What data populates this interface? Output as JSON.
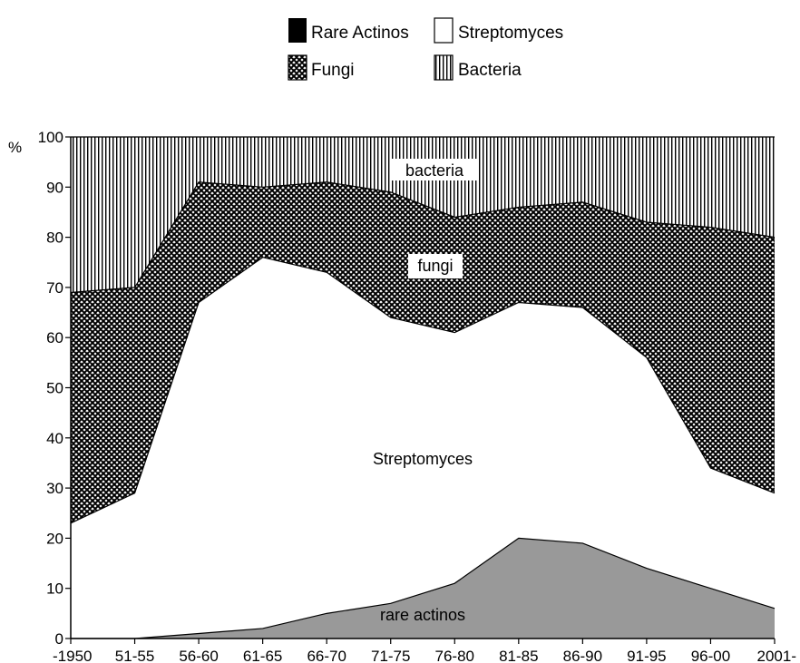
{
  "chart_data": {
    "type": "area",
    "stacked": true,
    "y_unit_label": "%",
    "categories": [
      "-1950",
      "51-55",
      "56-60",
      "61-65",
      "66-70",
      "71-75",
      "76-80",
      "81-85",
      "86-90",
      "91-95",
      "96-00",
      "2001-"
    ],
    "ylim": [
      0,
      100
    ],
    "yticks": [
      0,
      10,
      20,
      30,
      40,
      50,
      60,
      70,
      80,
      90,
      100
    ],
    "grid": false,
    "legend_position": "top-center",
    "series": [
      {
        "name": "Rare Actinos",
        "label": "rare actinos",
        "fill": "gray",
        "values": [
          0,
          0,
          1,
          2,
          5,
          7,
          11,
          20,
          19,
          14,
          10,
          6
        ]
      },
      {
        "name": "Streptomyces",
        "label": "Streptomyces",
        "fill": "white",
        "values": [
          23,
          29,
          66,
          74,
          68,
          57,
          50,
          47,
          47,
          42,
          24,
          23
        ]
      },
      {
        "name": "Fungi",
        "label": "fungi",
        "fill": "crosshatch",
        "values": [
          46,
          41,
          24,
          14,
          18,
          25,
          23,
          19,
          21,
          27,
          48,
          51
        ]
      },
      {
        "name": "Bacteria",
        "label": "bacteria",
        "fill": "vertical-lines",
        "values": [
          31,
          30,
          9,
          10,
          9,
          11,
          16,
          14,
          13,
          17,
          18,
          20
        ]
      }
    ],
    "colors": {
      "rare": "#999999",
      "streptomyces": "#ffffff",
      "outline": "#000000"
    }
  }
}
